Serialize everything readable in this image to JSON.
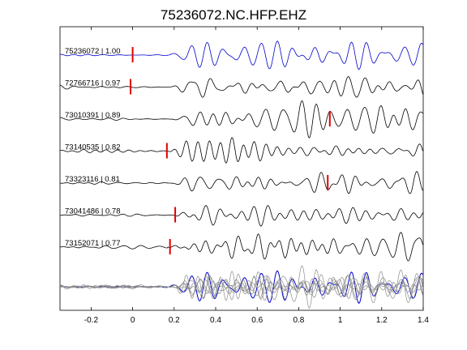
{
  "chart_data": {
    "type": "line",
    "title": "75236072.NC.HFP.EHZ",
    "xlabel": "",
    "ylabel": "",
    "xlim": [
      -0.35,
      1.4
    ],
    "grid": false,
    "xticks": [
      "-0.2",
      "0",
      "0.2",
      "0.4",
      "0.6",
      "0.8",
      "1",
      "1.2",
      "1.4"
    ],
    "xtick_values": [
      -0.2,
      0,
      0.2,
      0.4,
      0.6,
      0.8,
      1.0,
      1.2,
      1.4
    ],
    "colors": {
      "reference": "#0000cc",
      "trace": "#000000",
      "overlay": "#8c8c8c",
      "pick": "#e00000"
    },
    "series": [
      {
        "name": "75236072 | 1.00",
        "pick_time": 0.0,
        "reference": true
      },
      {
        "name": "72766716 | 0.97",
        "pick_time": -0.01
      },
      {
        "name": "73010391 | 0.89",
        "pick_time": 0.95
      },
      {
        "name": "73140535 | 0.82",
        "pick_time": 0.165
      },
      {
        "name": "73323116 | 0.81",
        "pick_time": 0.94
      },
      {
        "name": "73041486 | 0.78",
        "pick_time": 0.205
      },
      {
        "name": "73152071 | 0.77",
        "pick_time": 0.18
      }
    ],
    "stack": {
      "traces": 7
    }
  }
}
